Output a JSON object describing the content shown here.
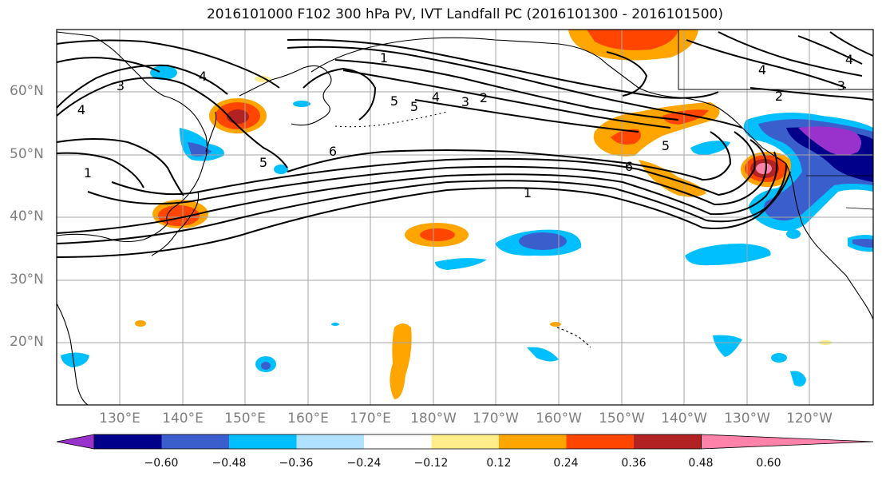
{
  "title": "2016101000 F102 300 hPa PV, IVT Landfall PC (2016101300 - 2016101500)",
  "lat_labels": [
    "60°N",
    "50°N",
    "40°N",
    "30°N",
    "20°N"
  ],
  "lon_labels": [
    "130°E",
    "140°E",
    "150°E",
    "160°E",
    "170°E",
    "180°W",
    "170°W",
    "160°W",
    "150°W",
    "140°W",
    "130°W",
    "120°W"
  ],
  "contour_labels": [
    "1",
    "2",
    "3",
    "4",
    "5",
    "6"
  ],
  "colorbar": {
    "tick_labels": [
      "−0.60",
      "−0.48",
      "−0.36",
      "−0.24",
      "−0.12",
      "0.12",
      "0.24",
      "0.36",
      "0.48",
      "0.60"
    ],
    "colors": [
      "#9932CC",
      "#00008B",
      "#3A5FCD",
      "#00BFFF",
      "#B0E2FF",
      "#FFFFFF",
      "#FFEC8B",
      "#FFA500",
      "#FF4500",
      "#B22222",
      "#FF82AB"
    ]
  }
}
